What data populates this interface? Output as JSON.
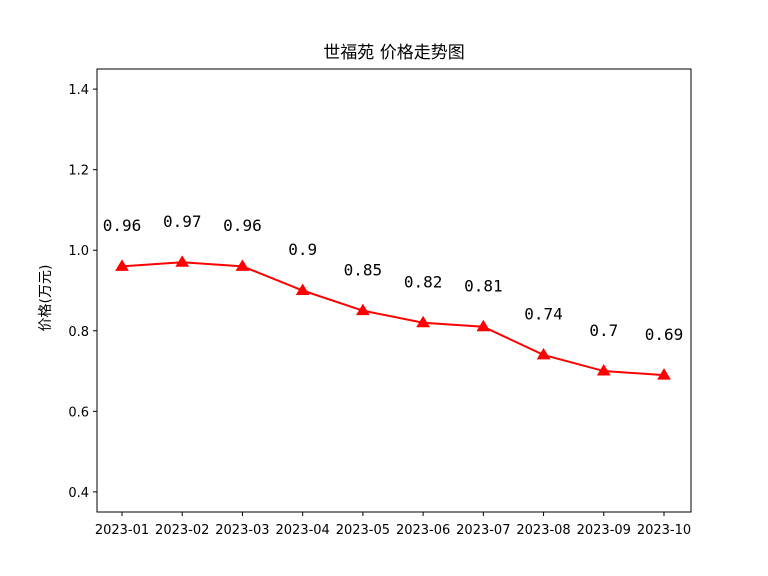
{
  "chart_data": {
    "type": "line",
    "title": "世福苑 价格走势图",
    "xlabel": "",
    "ylabel": "价格(万元)",
    "categories": [
      "2023-01",
      "2023-02",
      "2023-03",
      "2023-04",
      "2023-05",
      "2023-06",
      "2023-07",
      "2023-08",
      "2023-09",
      "2023-10"
    ],
    "series": [
      {
        "values": [
          0.96,
          0.97,
          0.96,
          0.9,
          0.85,
          0.82,
          0.81,
          0.74,
          0.7,
          0.69
        ],
        "labels": [
          "0.96",
          "0.97",
          "0.96",
          "0.9",
          "0.85",
          "0.82",
          "0.81",
          "0.74",
          "0.7",
          "0.69"
        ],
        "color": "#ff0000",
        "marker": "triangle-up"
      }
    ],
    "ylim": [
      0.35,
      1.45
    ],
    "yticks": [
      0.4,
      0.6,
      0.8,
      1.0,
      1.2,
      1.4
    ],
    "ytick_labels": [
      "0.4",
      "0.6",
      "0.8",
      "1.0",
      "1.2",
      "1.4"
    ],
    "grid": false,
    "legend": "none"
  }
}
